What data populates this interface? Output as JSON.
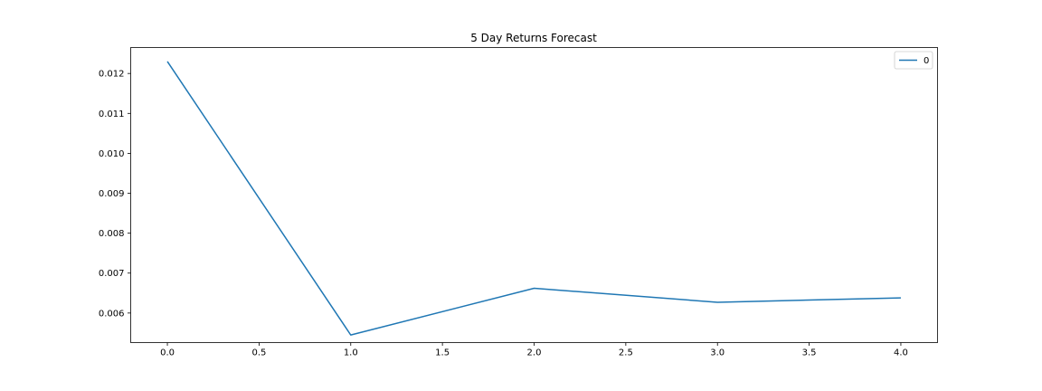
{
  "chart_data": {
    "type": "line",
    "title": "5 Day Returns Forecast",
    "xlabel": "",
    "ylabel": "",
    "x": [
      0,
      1,
      2,
      3,
      4
    ],
    "series": [
      {
        "name": "0",
        "color": "#1f77b4",
        "values": [
          0.0123,
          0.00545,
          0.00662,
          0.00627,
          0.00638
        ]
      }
    ],
    "xlim": [
      -0.2,
      4.2
    ],
    "ylim": [
      0.00526,
      0.01265
    ],
    "xticks": [
      0.0,
      0.5,
      1.0,
      1.5,
      2.0,
      2.5,
      3.0,
      3.5,
      4.0
    ],
    "xtick_labels": [
      "0.0",
      "0.5",
      "1.0",
      "1.5",
      "2.0",
      "2.5",
      "3.0",
      "3.5",
      "4.0"
    ],
    "yticks": [
      0.006,
      0.007,
      0.008,
      0.009,
      0.01,
      0.011,
      0.012
    ],
    "ytick_labels": [
      "0.006",
      "0.007",
      "0.008",
      "0.009",
      "0.010",
      "0.011",
      "0.012"
    ],
    "grid": false,
    "legend": {
      "position": "top-right",
      "entries": [
        "0"
      ]
    }
  }
}
